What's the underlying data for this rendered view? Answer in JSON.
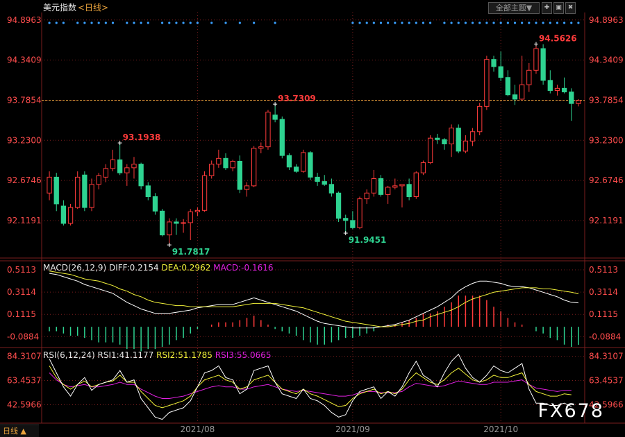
{
  "header": {
    "title": "美元指数",
    "period": "<日线>",
    "theme_button": "全部主题▼"
  },
  "footer": {
    "period_tab": "日线 ▲",
    "watermark": "FX678"
  },
  "colors": {
    "up": "#ff3b3b",
    "down": "#2ed391",
    "grid": "#7a1e1e",
    "axis_text": "#ff4d4d",
    "diff": "#ffffff",
    "dea": "#f2f23a",
    "macd": "#e020e0",
    "ref_line": "#e8a23c"
  },
  "toolbar_icons": [
    "add-icon",
    "window-icon",
    "close-icon"
  ],
  "chart_data": [
    {
      "type": "candlestick",
      "y_ticks": [
        "94.8963",
        "94.3409",
        "93.7854",
        "93.2300",
        "92.6746",
        "92.1191"
      ],
      "ylim": [
        91.6,
        95.0
      ],
      "x_ticks": [
        {
          "label": "2021/08",
          "index": 21
        },
        {
          "label": "2021/09",
          "index": 43
        },
        {
          "label": "2021/10",
          "index": 64
        }
      ],
      "reference_line": 93.7854,
      "annotations": [
        {
          "text": "93.1938",
          "index": 10,
          "value": 93.1938,
          "kind": "high"
        },
        {
          "text": "91.7817",
          "index": 17,
          "value": 91.7817,
          "kind": "low"
        },
        {
          "text": "93.7309",
          "index": 32,
          "value": 93.7309,
          "kind": "high"
        },
        {
          "text": "91.9451",
          "index": 42,
          "value": 91.9451,
          "kind": "low"
        },
        {
          "text": "94.5626",
          "index": 69,
          "value": 94.5626,
          "kind": "high"
        }
      ],
      "candles": [
        {
          "o": 92.5,
          "h": 92.8,
          "l": 92.4,
          "c": 92.72
        },
        {
          "o": 92.72,
          "h": 92.78,
          "l": 92.25,
          "c": 92.35
        },
        {
          "o": 92.32,
          "h": 92.4,
          "l": 92.05,
          "c": 92.08
        },
        {
          "o": 92.08,
          "h": 92.35,
          "l": 92.05,
          "c": 92.3
        },
        {
          "o": 92.3,
          "h": 92.8,
          "l": 92.28,
          "c": 92.72
        },
        {
          "o": 92.75,
          "h": 92.8,
          "l": 92.25,
          "c": 92.3
        },
        {
          "o": 92.3,
          "h": 92.7,
          "l": 92.25,
          "c": 92.62
        },
        {
          "o": 92.62,
          "h": 92.78,
          "l": 92.55,
          "c": 92.74
        },
        {
          "o": 92.72,
          "h": 92.9,
          "l": 92.65,
          "c": 92.84
        },
        {
          "o": 92.84,
          "h": 93.1,
          "l": 92.8,
          "c": 92.96
        },
        {
          "o": 92.96,
          "h": 93.19,
          "l": 92.75,
          "c": 92.78
        },
        {
          "o": 92.78,
          "h": 92.9,
          "l": 92.6,
          "c": 92.85
        },
        {
          "o": 92.85,
          "h": 93.0,
          "l": 92.7,
          "c": 92.9
        },
        {
          "o": 92.9,
          "h": 92.92,
          "l": 92.55,
          "c": 92.6
        },
        {
          "o": 92.6,
          "h": 92.65,
          "l": 92.4,
          "c": 92.45
        },
        {
          "o": 92.45,
          "h": 92.5,
          "l": 92.2,
          "c": 92.25
        },
        {
          "o": 92.25,
          "h": 92.28,
          "l": 91.9,
          "c": 91.92
        },
        {
          "o": 91.92,
          "h": 92.15,
          "l": 91.78,
          "c": 92.1
        },
        {
          "o": 92.1,
          "h": 92.15,
          "l": 91.92,
          "c": 92.08
        },
        {
          "o": 92.08,
          "h": 92.14,
          "l": 91.95,
          "c": 92.09
        },
        {
          "o": 92.09,
          "h": 92.28,
          "l": 91.85,
          "c": 92.24
        },
        {
          "o": 92.24,
          "h": 92.3,
          "l": 92.18,
          "c": 92.26
        },
        {
          "o": 92.26,
          "h": 92.8,
          "l": 92.24,
          "c": 92.74
        },
        {
          "o": 92.74,
          "h": 92.95,
          "l": 92.7,
          "c": 92.9
        },
        {
          "o": 92.9,
          "h": 93.1,
          "l": 92.85,
          "c": 92.98
        },
        {
          "o": 92.98,
          "h": 93.05,
          "l": 92.82,
          "c": 92.85
        },
        {
          "o": 92.85,
          "h": 92.96,
          "l": 92.8,
          "c": 92.94
        },
        {
          "o": 92.94,
          "h": 93.02,
          "l": 92.5,
          "c": 92.55
        },
        {
          "o": 92.55,
          "h": 92.65,
          "l": 92.45,
          "c": 92.6
        },
        {
          "o": 92.6,
          "h": 93.15,
          "l": 92.58,
          "c": 93.12
        },
        {
          "o": 93.12,
          "h": 93.2,
          "l": 93.05,
          "c": 93.14
        },
        {
          "o": 93.14,
          "h": 93.65,
          "l": 93.1,
          "c": 93.62
        },
        {
          "o": 93.58,
          "h": 93.73,
          "l": 93.48,
          "c": 93.52
        },
        {
          "o": 93.52,
          "h": 93.56,
          "l": 92.98,
          "c": 93.02
        },
        {
          "o": 93.02,
          "h": 93.05,
          "l": 92.82,
          "c": 92.86
        },
        {
          "o": 92.86,
          "h": 92.9,
          "l": 92.78,
          "c": 92.8
        },
        {
          "o": 92.8,
          "h": 93.1,
          "l": 92.78,
          "c": 93.06
        },
        {
          "o": 93.06,
          "h": 93.08,
          "l": 92.68,
          "c": 92.72
        },
        {
          "o": 92.72,
          "h": 92.78,
          "l": 92.6,
          "c": 92.66
        },
        {
          "o": 92.66,
          "h": 92.75,
          "l": 92.6,
          "c": 92.62
        },
        {
          "o": 92.62,
          "h": 92.7,
          "l": 92.45,
          "c": 92.5
        },
        {
          "o": 92.5,
          "h": 92.52,
          "l": 92.1,
          "c": 92.15
        },
        {
          "o": 92.15,
          "h": 92.2,
          "l": 91.95,
          "c": 92.12
        },
        {
          "o": 92.12,
          "h": 92.25,
          "l": 92.0,
          "c": 92.02
        },
        {
          "o": 92.02,
          "h": 92.45,
          "l": 92.0,
          "c": 92.42
        },
        {
          "o": 92.42,
          "h": 92.55,
          "l": 92.35,
          "c": 92.5
        },
        {
          "o": 92.5,
          "h": 92.82,
          "l": 92.45,
          "c": 92.7
        },
        {
          "o": 92.7,
          "h": 92.75,
          "l": 92.45,
          "c": 92.48
        },
        {
          "o": 92.48,
          "h": 92.6,
          "l": 92.35,
          "c": 92.58
        },
        {
          "o": 92.58,
          "h": 92.7,
          "l": 92.55,
          "c": 92.6
        },
        {
          "o": 92.6,
          "h": 92.62,
          "l": 92.3,
          "c": 92.62
        },
        {
          "o": 92.62,
          "h": 92.7,
          "l": 92.4,
          "c": 92.45
        },
        {
          "o": 92.45,
          "h": 92.8,
          "l": 92.42,
          "c": 92.78
        },
        {
          "o": 92.78,
          "h": 92.95,
          "l": 92.75,
          "c": 92.92
        },
        {
          "o": 92.92,
          "h": 93.3,
          "l": 92.9,
          "c": 93.26
        },
        {
          "o": 93.26,
          "h": 93.32,
          "l": 93.18,
          "c": 93.24
        },
        {
          "o": 93.24,
          "h": 93.26,
          "l": 93.1,
          "c": 93.18
        },
        {
          "o": 93.18,
          "h": 93.45,
          "l": 93.0,
          "c": 93.4
        },
        {
          "o": 93.4,
          "h": 93.45,
          "l": 93.05,
          "c": 93.08
        },
        {
          "o": 93.08,
          "h": 93.3,
          "l": 93.05,
          "c": 93.22
        },
        {
          "o": 93.22,
          "h": 93.4,
          "l": 93.15,
          "c": 93.35
        },
        {
          "o": 93.35,
          "h": 93.75,
          "l": 93.3,
          "c": 93.7
        },
        {
          "o": 93.7,
          "h": 94.4,
          "l": 93.65,
          "c": 94.35
        },
        {
          "o": 94.35,
          "h": 94.4,
          "l": 94.18,
          "c": 94.25
        },
        {
          "o": 94.25,
          "h": 94.46,
          "l": 94.05,
          "c": 94.1
        },
        {
          "o": 94.1,
          "h": 94.2,
          "l": 93.84,
          "c": 93.86
        },
        {
          "o": 93.86,
          "h": 94.0,
          "l": 93.72,
          "c": 93.8
        },
        {
          "o": 93.8,
          "h": 94.4,
          "l": 93.78,
          "c": 94.0
        },
        {
          "o": 94.0,
          "h": 94.3,
          "l": 93.9,
          "c": 94.2
        },
        {
          "o": 94.2,
          "h": 94.56,
          "l": 94.15,
          "c": 94.5
        },
        {
          "o": 94.5,
          "h": 94.56,
          "l": 94.0,
          "c": 94.06
        },
        {
          "o": 94.06,
          "h": 94.2,
          "l": 93.88,
          "c": 93.92
        },
        {
          "o": 93.92,
          "h": 94.0,
          "l": 93.85,
          "c": 93.95
        },
        {
          "o": 93.95,
          "h": 94.1,
          "l": 93.88,
          "c": 93.9
        },
        {
          "o": 93.9,
          "h": 93.95,
          "l": 93.5,
          "c": 93.74
        },
        {
          "o": 93.74,
          "h": 93.8,
          "l": 93.7,
          "c": 93.78
        }
      ]
    },
    {
      "type": "macd",
      "label_text": "MACD(26,12,9)",
      "diff_text": "DIFF:0.2154",
      "dea_text": "DEA:0.2962",
      "macd_text": "MACD:-0.1616",
      "y_ticks": [
        "0.5113",
        "0.3114",
        "0.1115",
        "-0.0884"
      ],
      "ylim": [
        -0.18,
        0.58
      ],
      "diff": [
        0.48,
        0.47,
        0.45,
        0.43,
        0.41,
        0.38,
        0.36,
        0.34,
        0.32,
        0.3,
        0.26,
        0.22,
        0.19,
        0.16,
        0.14,
        0.12,
        0.12,
        0.12,
        0.13,
        0.14,
        0.15,
        0.17,
        0.18,
        0.19,
        0.2,
        0.2,
        0.2,
        0.22,
        0.24,
        0.26,
        0.24,
        0.22,
        0.2,
        0.18,
        0.16,
        0.14,
        0.11,
        0.08,
        0.05,
        0.03,
        0.02,
        0.01,
        0.0,
        -0.01,
        -0.01,
        -0.01,
        -0.01,
        0.0,
        0.01,
        0.02,
        0.04,
        0.06,
        0.09,
        0.12,
        0.15,
        0.18,
        0.22,
        0.26,
        0.32,
        0.36,
        0.39,
        0.41,
        0.41,
        0.4,
        0.39,
        0.37,
        0.36,
        0.36,
        0.35,
        0.33,
        0.31,
        0.29,
        0.27,
        0.24,
        0.22,
        0.215
      ],
      "dea": [
        0.5,
        0.49,
        0.48,
        0.47,
        0.45,
        0.43,
        0.42,
        0.41,
        0.39,
        0.37,
        0.34,
        0.32,
        0.29,
        0.27,
        0.24,
        0.22,
        0.21,
        0.2,
        0.19,
        0.19,
        0.18,
        0.18,
        0.18,
        0.18,
        0.18,
        0.18,
        0.18,
        0.19,
        0.2,
        0.21,
        0.21,
        0.21,
        0.21,
        0.2,
        0.19,
        0.18,
        0.17,
        0.15,
        0.13,
        0.11,
        0.09,
        0.07,
        0.05,
        0.04,
        0.03,
        0.02,
        0.01,
        0.0,
        0.0,
        0.01,
        0.02,
        0.03,
        0.05,
        0.06,
        0.09,
        0.11,
        0.13,
        0.15,
        0.18,
        0.22,
        0.25,
        0.27,
        0.29,
        0.31,
        0.32,
        0.33,
        0.34,
        0.35,
        0.35,
        0.35,
        0.34,
        0.34,
        0.33,
        0.32,
        0.31,
        0.296
      ]
    },
    {
      "type": "rsi",
      "label_text": "RSI(6,12,24)",
      "rsi1_text": "RSI1:41.1177",
      "rsi2_text": "RSI2:51.1785",
      "rsi3_text": "RSI3:55.0665",
      "y_ticks": [
        "84.3107",
        "63.4537",
        "42.5966"
      ],
      "ylim": [
        28,
        90
      ],
      "rsi1": [
        82,
        70,
        58,
        50,
        60,
        66,
        55,
        60,
        62,
        64,
        72,
        62,
        64,
        48,
        40,
        32,
        30,
        36,
        38,
        40,
        46,
        58,
        70,
        72,
        76,
        66,
        64,
        52,
        56,
        72,
        74,
        76,
        62,
        52,
        50,
        48,
        56,
        48,
        46,
        42,
        36,
        32,
        34,
        46,
        54,
        56,
        58,
        48,
        54,
        50,
        58,
        70,
        80,
        68,
        64,
        58,
        70,
        80,
        86,
        74,
        66,
        62,
        68,
        76,
        72,
        70,
        74,
        78,
        56,
        44,
        44,
        42,
        42,
        44,
        41.1
      ],
      "rsi2": [
        76,
        66,
        60,
        56,
        60,
        63,
        58,
        60,
        62,
        63,
        68,
        62,
        62,
        54,
        48,
        42,
        40,
        42,
        44,
        46,
        50,
        58,
        64,
        66,
        68,
        64,
        62,
        56,
        58,
        64,
        66,
        68,
        62,
        56,
        54,
        52,
        56,
        52,
        50,
        47,
        44,
        41,
        42,
        48,
        52,
        54,
        56,
        52,
        54,
        52,
        56,
        64,
        70,
        66,
        62,
        60,
        64,
        70,
        74,
        69,
        64,
        62,
        64,
        68,
        66,
        66,
        68,
        70,
        60,
        54,
        52,
        50,
        50,
        52,
        51.2
      ],
      "rsi3": [
        70,
        64,
        60,
        58,
        59,
        60,
        58,
        58,
        59,
        60,
        62,
        60,
        60,
        56,
        53,
        50,
        48,
        48,
        49,
        50,
        52,
        54,
        56,
        58,
        59,
        58,
        58,
        56,
        56,
        58,
        59,
        60,
        58,
        56,
        55,
        54,
        55,
        54,
        53,
        52,
        51,
        50,
        50,
        51,
        53,
        54,
        54,
        53,
        53,
        53,
        54,
        58,
        61,
        60,
        59,
        58,
        59,
        61,
        63,
        62,
        61,
        60,
        60,
        62,
        62,
        62,
        63,
        64,
        60,
        57,
        56,
        55,
        54,
        55,
        55.1
      ]
    }
  ]
}
